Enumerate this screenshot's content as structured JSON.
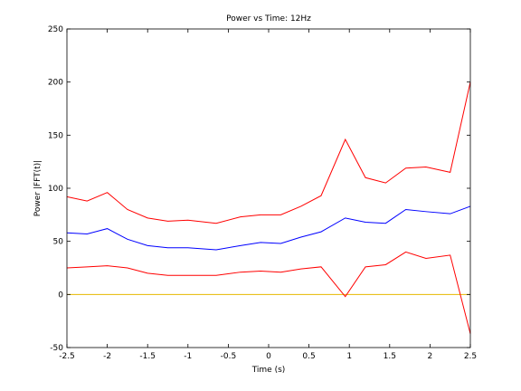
{
  "chart_data": {
    "type": "line",
    "title": "Power vs Time: 12Hz",
    "xlabel": "Time (s)",
    "ylabel": "Power |FFT(t)|",
    "xlim": [
      -2.5,
      2.5
    ],
    "ylim": [
      -50,
      250
    ],
    "grid": false,
    "x": [
      -2.5,
      -2.25,
      -2.0,
      -1.75,
      -1.5,
      -1.25,
      -1.0,
      -0.65,
      -0.35,
      -0.1,
      0.15,
      0.4,
      0.65,
      0.95,
      1.2,
      1.45,
      1.7,
      1.95,
      2.25,
      2.5
    ],
    "x_ticks": [
      "-2.5",
      "-2",
      "-1.5",
      "-1",
      "-0.5",
      "0",
      "0.5",
      "1",
      "1.5",
      "2",
      "2.5"
    ],
    "y_ticks": [
      "-50",
      "0",
      "50",
      "100",
      "150",
      "200",
      "250"
    ],
    "series": [
      {
        "role": "upper",
        "color": "#ff0000",
        "values": [
          92,
          88,
          96,
          80,
          72,
          69,
          70,
          67,
          73,
          75,
          75,
          83,
          93,
          146,
          110,
          105,
          119,
          120,
          115,
          200
        ]
      },
      {
        "role": "mean",
        "color": "#0000ff",
        "values": [
          58,
          57,
          62,
          52,
          46,
          44,
          44,
          42,
          46,
          49,
          48,
          54,
          59,
          72,
          68,
          67,
          80,
          78,
          76,
          83
        ]
      },
      {
        "role": "lower",
        "color": "#ff0000",
        "values": [
          25,
          26,
          27,
          25,
          20,
          18,
          18,
          18,
          21,
          22,
          21,
          24,
          26,
          -2,
          26,
          28,
          40,
          34,
          37,
          -37
        ]
      },
      {
        "role": "zero",
        "color": "#e6b800",
        "values": [
          0,
          0,
          0,
          0,
          0,
          0,
          0,
          0,
          0,
          0,
          0,
          0,
          0,
          0,
          0,
          0,
          0,
          0,
          0,
          0
        ]
      }
    ]
  }
}
